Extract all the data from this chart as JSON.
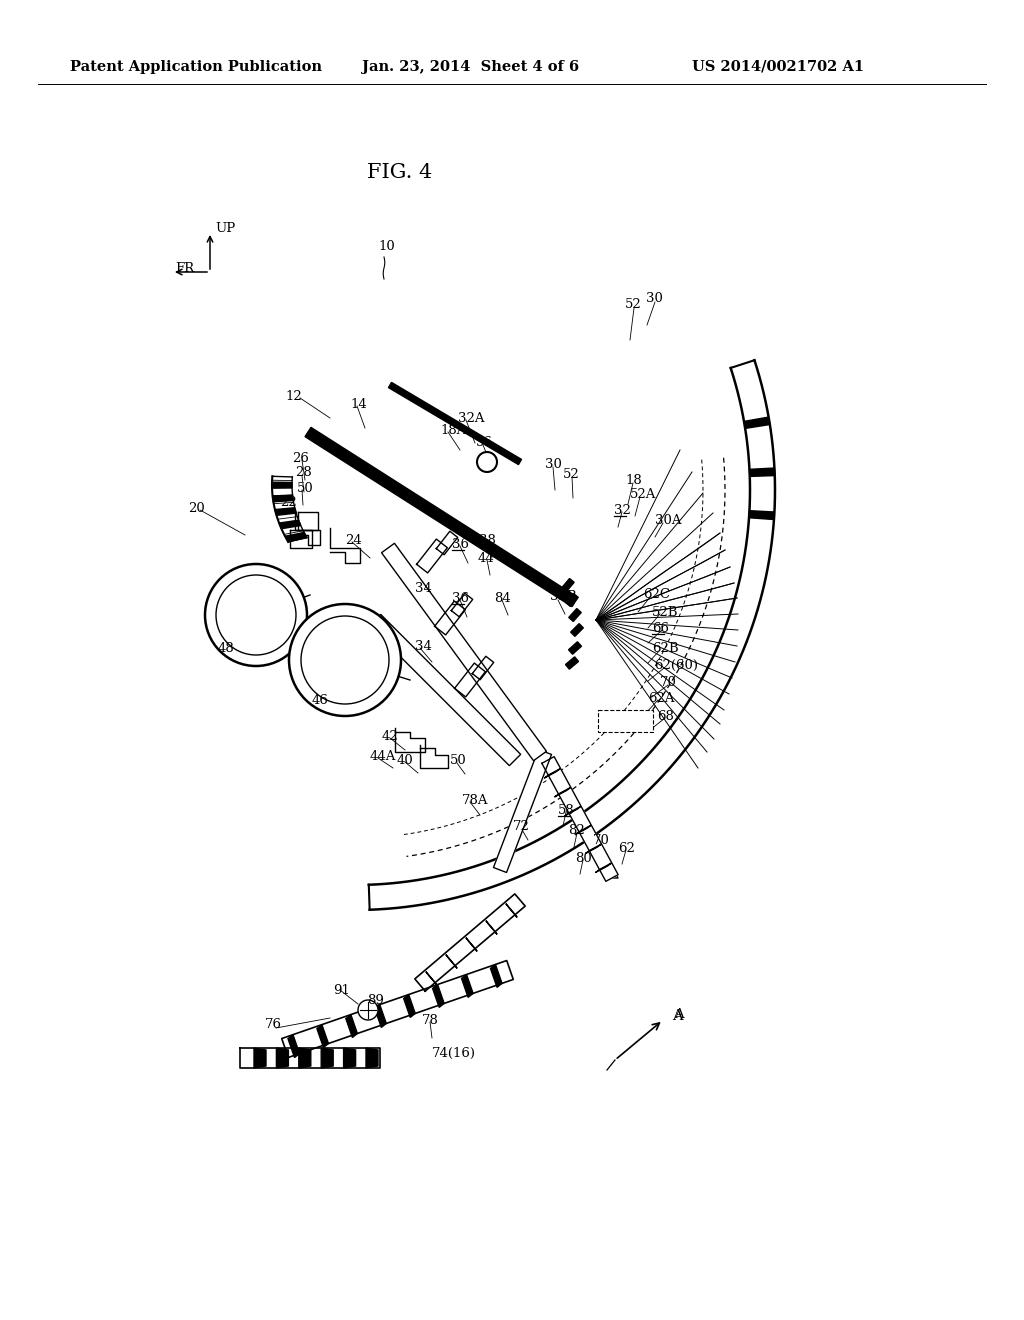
{
  "bg": "#ffffff",
  "header_left": "Patent Application Publication",
  "header_mid": "Jan. 23, 2014  Sheet 4 of 6",
  "header_right": "US 2014/0021702 A1",
  "fig_title": "FIG. 4"
}
